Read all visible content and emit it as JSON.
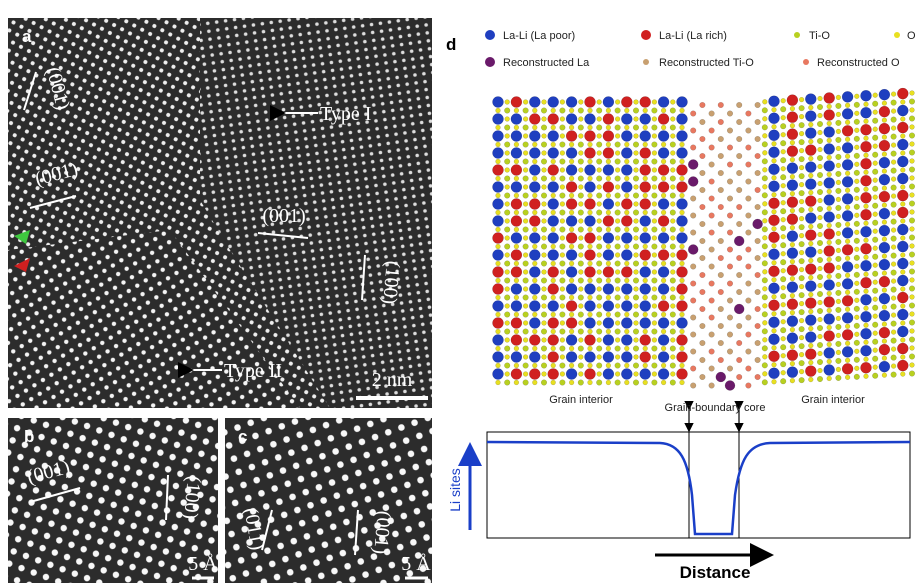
{
  "panels": {
    "a": {
      "label": "a",
      "annotations": [
        "(001)",
        "(001)",
        "Type I",
        "(001)",
        "(100)",
        "Type II"
      ],
      "scale_bar": "2 nm"
    },
    "b": {
      "label": "b",
      "annotations": [
        "(001)",
        "(100)"
      ],
      "scale_bar": "5 Å"
    },
    "c": {
      "label": "c",
      "annotations": [
        "(011)",
        "(001)"
      ],
      "scale_bar": "5 Å"
    },
    "d": {
      "label": "d",
      "legend": [
        "La-Li (La poor)",
        "La-Li (La rich)",
        "Ti-O",
        "O",
        "Reconstructed La",
        "Reconstructed Ti-O",
        "Reconstructed O"
      ],
      "regions": [
        "Grain interior",
        "Grain-boundary core",
        "Grain interior"
      ],
      "y_label": "Li sites",
      "x_label": "Distance"
    }
  }
}
